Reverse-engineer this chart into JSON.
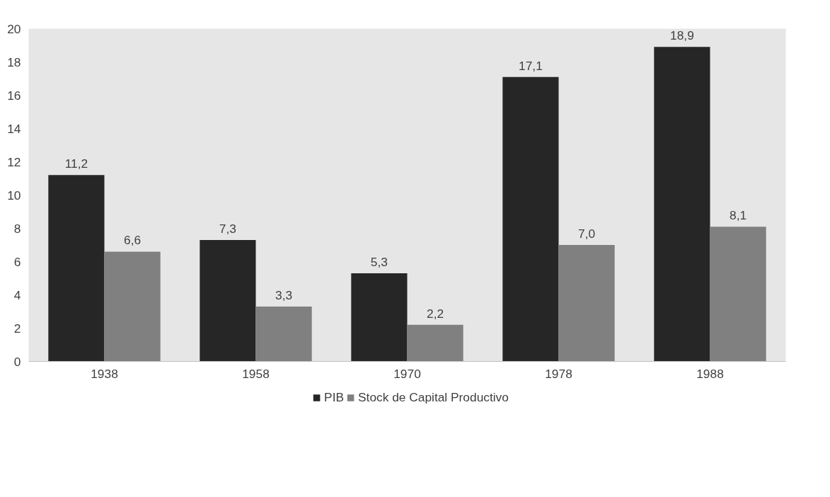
{
  "chart_data": {
    "type": "bar",
    "categories": [
      "1938",
      "1958",
      "1970",
      "1978",
      "1988"
    ],
    "series": [
      {
        "name": "PIB",
        "color": "#262626",
        "values": [
          11.2,
          7.3,
          5.3,
          17.1,
          18.9
        ],
        "value_labels": [
          "11,2",
          "7,3",
          "5,3",
          "17,1",
          "18,9"
        ]
      },
      {
        "name": "Stock de Capital Productivo",
        "color": "#808080",
        "values": [
          6.6,
          3.3,
          2.2,
          7.0,
          8.1
        ],
        "value_labels": [
          "6,6",
          "3,3",
          "2,2",
          "7,0",
          "8,1"
        ]
      }
    ],
    "ylim": [
      0,
      20
    ],
    "yticks": [
      0,
      2,
      4,
      6,
      8,
      10,
      12,
      14,
      16,
      18,
      20
    ],
    "legend": "bottom"
  }
}
